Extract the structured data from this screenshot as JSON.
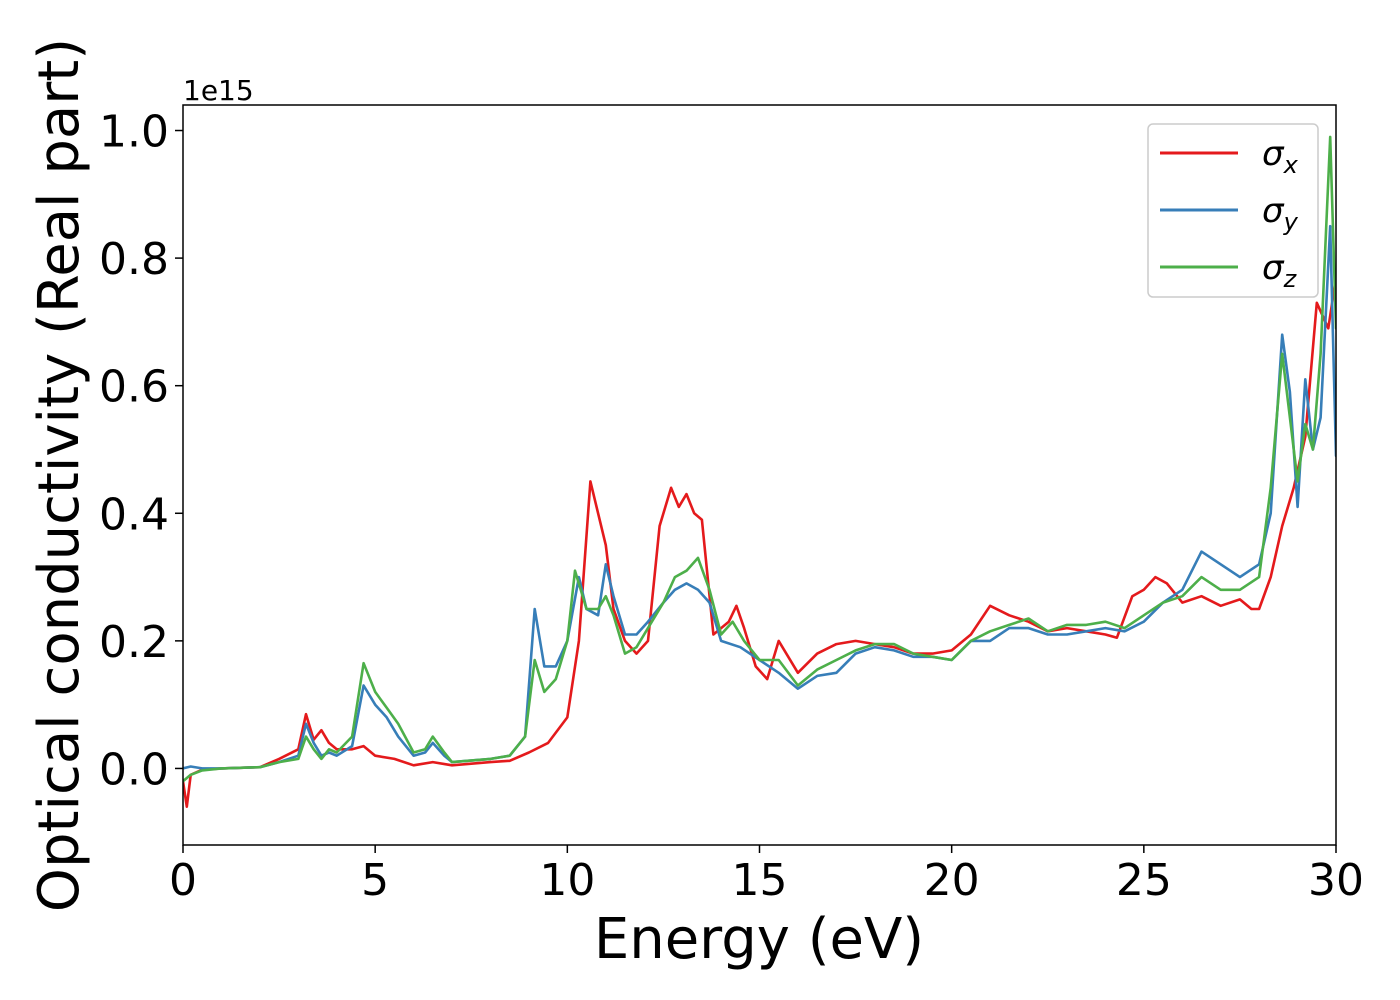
{
  "chart_data": {
    "type": "line",
    "xlabel": "Energy (eV)",
    "ylabel": "Optical conductivity (Real part)",
    "y_offset_text": "1e15",
    "xlim": [
      0,
      30
    ],
    "ylim": [
      -0.12,
      1.04
    ],
    "x_ticks": [
      0,
      5,
      10,
      15,
      20,
      25,
      30
    ],
    "x_tick_labels": [
      "0",
      "5",
      "10",
      "15",
      "20",
      "25",
      "30"
    ],
    "y_ticks": [
      0.0,
      0.2,
      0.4,
      0.6,
      0.8,
      1.0
    ],
    "y_tick_labels": [
      "0.0",
      "0.2",
      "0.4",
      "0.6",
      "0.8",
      "1.0"
    ],
    "grid": false,
    "legend_position": "top-right",
    "series": [
      {
        "name": "σx",
        "symbol": "σ",
        "subscript": "x",
        "color": "#e41a1c",
        "x": [
          0,
          0.1,
          0.2,
          0.5,
          1,
          2,
          2.5,
          3,
          3.2,
          3.4,
          3.6,
          3.8,
          4,
          4.4,
          4.7,
          5,
          5.5,
          6,
          6.5,
          7,
          8,
          8.5,
          9,
          9.5,
          10,
          10.3,
          10.6,
          10.8,
          11,
          11.2,
          11.5,
          11.8,
          12.1,
          12.4,
          12.7,
          12.9,
          13.1,
          13.3,
          13.5,
          13.8,
          14.2,
          14.4,
          14.6,
          14.9,
          15.2,
          15.5,
          16,
          16.5,
          17,
          17.5,
          18,
          18.5,
          19,
          19.5,
          20,
          20.5,
          21,
          21.5,
          22,
          22.5,
          23,
          23.5,
          24,
          24.3,
          24.7,
          25,
          25.3,
          25.6,
          26,
          26.5,
          27,
          27.5,
          27.8,
          28,
          28.3,
          28.6,
          28.9,
          29.2,
          29.5,
          29.8,
          30
        ],
        "y": [
          -0.02,
          -0.06,
          -0.01,
          -0.002,
          0.0,
          0.002,
          0.015,
          0.03,
          0.085,
          0.045,
          0.06,
          0.04,
          0.03,
          0.03,
          0.035,
          0.02,
          0.015,
          0.005,
          0.01,
          0.005,
          0.01,
          0.012,
          0.025,
          0.04,
          0.08,
          0.2,
          0.45,
          0.4,
          0.35,
          0.25,
          0.2,
          0.18,
          0.2,
          0.38,
          0.44,
          0.41,
          0.43,
          0.4,
          0.39,
          0.21,
          0.23,
          0.255,
          0.22,
          0.16,
          0.14,
          0.2,
          0.15,
          0.18,
          0.195,
          0.2,
          0.195,
          0.19,
          0.18,
          0.18,
          0.185,
          0.21,
          0.255,
          0.24,
          0.23,
          0.215,
          0.22,
          0.215,
          0.21,
          0.205,
          0.27,
          0.28,
          0.3,
          0.29,
          0.26,
          0.27,
          0.255,
          0.265,
          0.25,
          0.25,
          0.3,
          0.38,
          0.44,
          0.52,
          0.73,
          0.69,
          0.77
        ]
      },
      {
        "name": "σy",
        "symbol": "σ",
        "subscript": "y",
        "color": "#377eb8",
        "x": [
          0,
          0.2,
          0.5,
          1,
          2,
          2.5,
          3,
          3.2,
          3.4,
          3.6,
          3.8,
          4,
          4.4,
          4.7,
          5,
          5.3,
          5.6,
          6,
          6.3,
          6.5,
          6.8,
          7,
          8,
          8.5,
          8.9,
          9.15,
          9.4,
          9.7,
          10,
          10.3,
          10.5,
          10.8,
          11,
          11.2,
          11.5,
          11.8,
          12.1,
          12.5,
          12.8,
          13.1,
          13.4,
          13.7,
          14,
          14.5,
          15,
          15.5,
          16,
          16.5,
          17,
          17.5,
          18,
          18.5,
          19,
          19.5,
          20,
          20.5,
          21,
          21.5,
          22,
          22.5,
          23,
          23.5,
          24,
          24.5,
          25,
          25.5,
          26,
          26.5,
          27,
          27.5,
          28,
          28.3,
          28.6,
          28.8,
          29,
          29.2,
          29.4,
          29.6,
          29.85,
          30
        ],
        "y": [
          0.0,
          0.003,
          0.0,
          0.0,
          0.002,
          0.01,
          0.02,
          0.07,
          0.04,
          0.02,
          0.025,
          0.02,
          0.035,
          0.13,
          0.1,
          0.08,
          0.05,
          0.02,
          0.025,
          0.04,
          0.02,
          0.01,
          0.015,
          0.02,
          0.05,
          0.25,
          0.16,
          0.16,
          0.2,
          0.3,
          0.25,
          0.24,
          0.32,
          0.27,
          0.21,
          0.21,
          0.23,
          0.26,
          0.28,
          0.29,
          0.28,
          0.26,
          0.2,
          0.19,
          0.17,
          0.15,
          0.125,
          0.145,
          0.15,
          0.18,
          0.19,
          0.185,
          0.175,
          0.175,
          0.17,
          0.2,
          0.2,
          0.22,
          0.22,
          0.21,
          0.21,
          0.215,
          0.22,
          0.215,
          0.23,
          0.26,
          0.28,
          0.34,
          0.32,
          0.3,
          0.32,
          0.4,
          0.68,
          0.59,
          0.41,
          0.61,
          0.5,
          0.55,
          0.85,
          0.49
        ]
      },
      {
        "name": "σz",
        "symbol": "σ",
        "subscript": "z",
        "color": "#4daf4a",
        "x": [
          0,
          0.2,
          0.5,
          1,
          2,
          2.5,
          3,
          3.2,
          3.4,
          3.6,
          3.8,
          4,
          4.4,
          4.7,
          5,
          5.3,
          5.6,
          6,
          6.3,
          6.5,
          6.8,
          7,
          8,
          8.5,
          8.9,
          9.15,
          9.4,
          9.7,
          10,
          10.2,
          10.5,
          10.8,
          11,
          11.2,
          11.5,
          11.8,
          12.1,
          12.5,
          12.8,
          13.1,
          13.4,
          13.7,
          14,
          14.3,
          14.6,
          15,
          15.5,
          16,
          16.5,
          17,
          17.5,
          18,
          18.5,
          19,
          19.5,
          20,
          20.5,
          21,
          21.5,
          22,
          22.5,
          23,
          23.5,
          24,
          24.5,
          25,
          25.5,
          26,
          26.5,
          27,
          27.5,
          28,
          28.3,
          28.6,
          28.8,
          29,
          29.2,
          29.4,
          29.6,
          29.85,
          30
        ],
        "y": [
          -0.02,
          -0.01,
          -0.003,
          0.0,
          0.002,
          0.01,
          0.015,
          0.05,
          0.03,
          0.015,
          0.03,
          0.025,
          0.05,
          0.165,
          0.12,
          0.095,
          0.07,
          0.025,
          0.03,
          0.05,
          0.025,
          0.01,
          0.015,
          0.02,
          0.05,
          0.17,
          0.12,
          0.14,
          0.2,
          0.31,
          0.25,
          0.25,
          0.27,
          0.24,
          0.18,
          0.19,
          0.22,
          0.26,
          0.3,
          0.31,
          0.33,
          0.28,
          0.21,
          0.23,
          0.2,
          0.17,
          0.17,
          0.13,
          0.155,
          0.17,
          0.185,
          0.195,
          0.195,
          0.18,
          0.175,
          0.17,
          0.2,
          0.215,
          0.225,
          0.235,
          0.215,
          0.225,
          0.225,
          0.23,
          0.22,
          0.24,
          0.26,
          0.27,
          0.3,
          0.28,
          0.28,
          0.3,
          0.44,
          0.65,
          0.55,
          0.45,
          0.54,
          0.5,
          0.65,
          0.99,
          0.69
        ]
      }
    ]
  }
}
